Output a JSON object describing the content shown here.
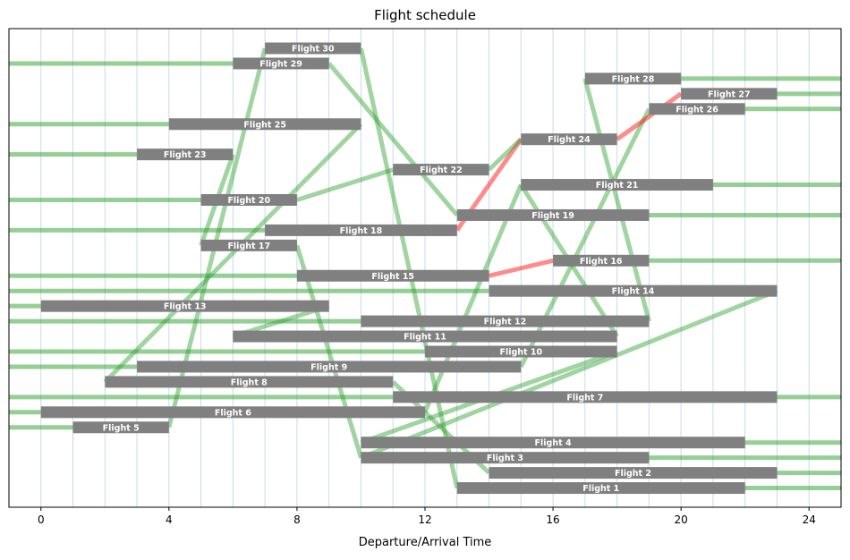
{
  "chart_data": {
    "type": "timeline",
    "title": "Flight schedule",
    "xlabel": "Departure/Arrival Time",
    "ylabel": "",
    "xlim": [
      -1,
      25
    ],
    "x_ticks": [
      0,
      4,
      8,
      12,
      16,
      20,
      24
    ],
    "hour_gridlines": true,
    "colors": {
      "bar": "#808080",
      "connection": "#2ca02c",
      "infeasible_connection": "#ff0000",
      "grid": "#c6dbef"
    },
    "flights": [
      {
        "id": 1,
        "label": "Flight 1",
        "dep": 13,
        "arr": 22
      },
      {
        "id": 2,
        "label": "Flight 2",
        "dep": 14,
        "arr": 23
      },
      {
        "id": 3,
        "label": "Flight 3",
        "dep": 10,
        "arr": 19
      },
      {
        "id": 4,
        "label": "Flight 4",
        "dep": 10,
        "arr": 22
      },
      {
        "id": 5,
        "label": "Flight 5",
        "dep": 1,
        "arr": 4
      },
      {
        "id": 6,
        "label": "Flight 6",
        "dep": 0,
        "arr": 12
      },
      {
        "id": 7,
        "label": "Flight 7",
        "dep": 11,
        "arr": 23
      },
      {
        "id": 8,
        "label": "Flight 8",
        "dep": 2,
        "arr": 11
      },
      {
        "id": 9,
        "label": "Flight 9",
        "dep": 3,
        "arr": 15
      },
      {
        "id": 10,
        "label": "Flight 10",
        "dep": 12,
        "arr": 18
      },
      {
        "id": 11,
        "label": "Flight 11",
        "dep": 6,
        "arr": 18
      },
      {
        "id": 12,
        "label": "Flight 12",
        "dep": 10,
        "arr": 19
      },
      {
        "id": 13,
        "label": "Flight 13",
        "dep": 0,
        "arr": 9
      },
      {
        "id": 14,
        "label": "Flight 14",
        "dep": 14,
        "arr": 23
      },
      {
        "id": 15,
        "label": "Flight 15",
        "dep": 8,
        "arr": 14
      },
      {
        "id": 16,
        "label": "Flight 16",
        "dep": 16,
        "arr": 19
      },
      {
        "id": 17,
        "label": "Flight 17",
        "dep": 5,
        "arr": 8
      },
      {
        "id": 18,
        "label": "Flight 18",
        "dep": 7,
        "arr": 13
      },
      {
        "id": 19,
        "label": "Flight 19",
        "dep": 13,
        "arr": 19
      },
      {
        "id": 20,
        "label": "Flight 20",
        "dep": 5,
        "arr": 8
      },
      {
        "id": 21,
        "label": "Flight 21",
        "dep": 15,
        "arr": 21
      },
      {
        "id": 22,
        "label": "Flight 22",
        "dep": 11,
        "arr": 14
      },
      {
        "id": 23,
        "label": "Flight 23",
        "dep": 3,
        "arr": 6
      },
      {
        "id": 24,
        "label": "Flight 24",
        "dep": 15,
        "arr": 18
      },
      {
        "id": 25,
        "label": "Flight 25",
        "dep": 4,
        "arr": 10
      },
      {
        "id": 26,
        "label": "Flight 26",
        "dep": 19,
        "arr": 22
      },
      {
        "id": 27,
        "label": "Flight 27",
        "dep": 20,
        "arr": 23
      },
      {
        "id": 28,
        "label": "Flight 28",
        "dep": 17,
        "arr": 20
      },
      {
        "id": 29,
        "label": "Flight 29",
        "dep": 6,
        "arr": 9
      },
      {
        "id": 30,
        "label": "Flight 30",
        "dep": 7,
        "arr": 10
      }
    ],
    "connections": [
      {
        "from": 5,
        "to": 30,
        "feasible": true
      },
      {
        "from": 23,
        "to": 17,
        "feasible": true
      },
      {
        "from": 25,
        "to": 8,
        "feasible": true
      },
      {
        "from": 13,
        "to": 11,
        "feasible": true
      },
      {
        "from": 29,
        "to": 19,
        "feasible": true
      },
      {
        "from": 20,
        "to": 22,
        "feasible": true
      },
      {
        "from": 17,
        "to": 3,
        "feasible": true
      },
      {
        "from": 30,
        "to": 1,
        "feasible": true
      },
      {
        "from": 8,
        "to": 2,
        "feasible": true
      },
      {
        "from": 18,
        "to": 24,
        "feasible": false
      },
      {
        "from": 15,
        "to": 16,
        "feasible": false
      },
      {
        "from": 22,
        "to": 24,
        "feasible": true
      },
      {
        "from": 6,
        "to": 21,
        "feasible": true
      },
      {
        "from": 9,
        "to": 26,
        "feasible": true
      },
      {
        "from": 24,
        "to": 27,
        "feasible": false
      },
      {
        "from": 10,
        "to": 4,
        "feasible": true
      },
      {
        "from": 11,
        "to": 21,
        "feasible": true
      },
      {
        "from": 12,
        "to": 28,
        "feasible": true
      },
      {
        "from": 14,
        "to": 3,
        "feasible": true
      }
    ]
  }
}
